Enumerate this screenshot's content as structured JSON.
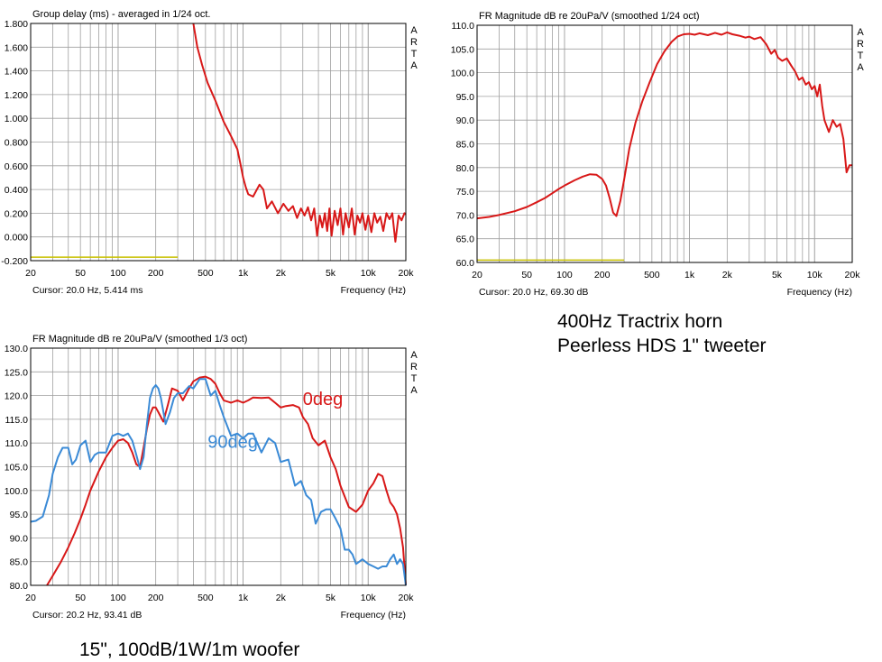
{
  "chart_data": [
    {
      "type": "line",
      "title": "Group delay (ms) - averaged in 1/24 oct.",
      "xlabel": "Frequency (Hz)",
      "ylabel": "",
      "watermark": "ARTA",
      "cursor_text": "Cursor: 20.0 Hz, 5.414 ms",
      "xscale": "log",
      "xlim": [
        20,
        20000
      ],
      "ylim": [
        -0.2,
        1.8
      ],
      "xticks": [
        20,
        50,
        100,
        200,
        500,
        1000,
        2000,
        5000,
        10000,
        20000
      ],
      "xtick_labels": [
        "20",
        "50",
        "100",
        "200",
        "500",
        "1k",
        "2k",
        "5k",
        "10k",
        "20k"
      ],
      "yticks": [
        -0.2,
        0.0,
        0.2,
        0.4,
        0.6,
        0.8,
        1.0,
        1.2,
        1.4,
        1.6,
        1.8
      ],
      "ytick_labels": [
        "-0.200",
        "0.000",
        "0.200",
        "0.400",
        "0.600",
        "0.800",
        "1.000",
        "1.200",
        "1.400",
        "1.600",
        "1.800"
      ],
      "grid": true,
      "series": [
        {
          "color": "#d81818",
          "x": [
            400,
            430,
            470,
            520,
            600,
            700,
            800,
            900,
            950,
            1000,
            1050,
            1100,
            1200,
            1350,
            1450,
            1550,
            1700,
            1900,
            2100,
            2300,
            2500,
            2700,
            2900,
            3100,
            3300,
            3500,
            3700,
            3900,
            4100,
            4300,
            4500,
            4700,
            4900,
            5100,
            5400,
            5700,
            6000,
            6300,
            6600,
            7000,
            7400,
            7800,
            8200,
            8600,
            9000,
            9500,
            10000,
            10600,
            11200,
            11800,
            12500,
            13200,
            14000,
            14800,
            15600,
            16500,
            17500,
            18500,
            19500,
            20000
          ],
          "y": [
            1.8,
            1.6,
            1.45,
            1.3,
            1.15,
            0.97,
            0.85,
            0.74,
            0.62,
            0.5,
            0.42,
            0.36,
            0.34,
            0.44,
            0.4,
            0.24,
            0.3,
            0.2,
            0.28,
            0.22,
            0.26,
            0.16,
            0.24,
            0.18,
            0.25,
            0.14,
            0.24,
            0.01,
            0.18,
            0.08,
            0.2,
            0.05,
            0.24,
            0.01,
            0.22,
            0.1,
            0.24,
            0.02,
            0.2,
            0.08,
            0.24,
            0.02,
            0.18,
            0.12,
            0.2,
            0.06,
            0.18,
            0.04,
            0.2,
            0.12,
            0.17,
            0.05,
            0.2,
            0.15,
            0.2,
            -0.04,
            0.18,
            0.14,
            0.2,
            0.19
          ]
        },
        {
          "color": "#c8c000",
          "x": [
            20,
            300
          ],
          "y": [
            -0.17,
            -0.17
          ]
        }
      ]
    },
    {
      "type": "line",
      "title": "FR Magnitude dB re 20uPa/V (smoothed 1/24 oct)",
      "xlabel": "Frequency (Hz)",
      "ylabel": "",
      "watermark": "ARTA",
      "cursor_text": "Cursor: 20.0 Hz, 69.30 dB",
      "xscale": "log",
      "xlim": [
        20,
        20000
      ],
      "ylim": [
        60,
        110
      ],
      "xticks": [
        20,
        50,
        100,
        200,
        500,
        1000,
        2000,
        5000,
        10000,
        20000
      ],
      "xtick_labels": [
        "20",
        "50",
        "100",
        "200",
        "500",
        "1k",
        "2k",
        "5k",
        "10k",
        "20k"
      ],
      "yticks": [
        60,
        65,
        70,
        75,
        80,
        85,
        90,
        95,
        100,
        105,
        110
      ],
      "ytick_labels": [
        "60.0",
        "65.0",
        "70.0",
        "75.0",
        "80.0",
        "85.0",
        "90.0",
        "95.0",
        "100.0",
        "105.0",
        "110.0"
      ],
      "grid": true,
      "series": [
        {
          "color": "#d81818",
          "x": [
            20,
            25,
            30,
            40,
            50,
            60,
            70,
            80,
            90,
            100,
            120,
            140,
            160,
            180,
            200,
            215,
            230,
            245,
            260,
            280,
            300,
            330,
            370,
            420,
            480,
            550,
            630,
            720,
            800,
            900,
            1000,
            1100,
            1200,
            1400,
            1600,
            1800,
            2000,
            2200,
            2500,
            2800,
            3000,
            3300,
            3700,
            4100,
            4500,
            4800,
            5100,
            5500,
            6000,
            6500,
            7000,
            7500,
            8000,
            8500,
            9000,
            9500,
            10000,
            10500,
            11000,
            11500,
            12000,
            13000,
            14000,
            15000,
            16000,
            17000,
            18000,
            19000,
            20000
          ],
          "y": [
            69.3,
            69.6,
            70.0,
            70.8,
            71.7,
            72.7,
            73.6,
            74.6,
            75.5,
            76.2,
            77.3,
            78.1,
            78.6,
            78.5,
            77.6,
            76.2,
            73.5,
            70.5,
            69.8,
            73.0,
            77.5,
            84.0,
            89.5,
            94.0,
            98.0,
            101.8,
            104.5,
            106.5,
            107.6,
            108.1,
            108.2,
            108.0,
            108.3,
            107.9,
            108.4,
            108.0,
            108.5,
            108.1,
            107.8,
            107.4,
            107.6,
            107.1,
            107.5,
            106.0,
            104.0,
            104.8,
            103.2,
            102.5,
            103.0,
            101.5,
            100.2,
            98.5,
            99.0,
            97.5,
            98.0,
            96.5,
            97.2,
            95.0,
            97.5,
            93.0,
            90.0,
            87.5,
            90.0,
            88.6,
            89.2,
            86.0,
            79.0,
            80.5,
            80.5
          ]
        },
        {
          "color": "#c8c000",
          "x": [
            20,
            300
          ],
          "y": [
            60.5,
            60.5
          ]
        }
      ]
    },
    {
      "type": "line",
      "title": "FR Magnitude dB re 20uPa/V (smoothed 1/3 oct)",
      "xlabel": "Frequency (Hz)",
      "ylabel": "",
      "watermark": "ARTA",
      "cursor_text": "Cursor: 20.2 Hz, 93.41 dB",
      "xscale": "log",
      "xlim": [
        20,
        20000
      ],
      "ylim": [
        80,
        130
      ],
      "xticks": [
        20,
        50,
        100,
        200,
        500,
        1000,
        2000,
        5000,
        10000,
        20000
      ],
      "xtick_labels": [
        "20",
        "50",
        "100",
        "200",
        "500",
        "1k",
        "2k",
        "5k",
        "10k",
        "20k"
      ],
      "yticks": [
        80,
        85,
        90,
        95,
        100,
        105,
        110,
        115,
        120,
        125,
        130
      ],
      "ytick_labels": [
        "80.0",
        "85.0",
        "90.0",
        "95.0",
        "100.0",
        "105.0",
        "110.0",
        "115.0",
        "120.0",
        "125.0",
        "130.0"
      ],
      "grid": true,
      "annotations": [
        {
          "text": "0deg",
          "color": "#d81818",
          "x": 3000,
          "y": 118
        },
        {
          "text": "90deg",
          "color": "#3a8ad6",
          "x": 520,
          "y": 109
        }
      ],
      "series": [
        {
          "name": "0deg",
          "color": "#d81818",
          "x": [
            27,
            30,
            35,
            40,
            45,
            50,
            55,
            60,
            70,
            80,
            90,
            100,
            110,
            120,
            130,
            140,
            150,
            160,
            170,
            180,
            190,
            200,
            210,
            230,
            250,
            270,
            300,
            330,
            370,
            400,
            450,
            500,
            550,
            600,
            650,
            700,
            800,
            900,
            1000,
            1100,
            1200,
            1400,
            1600,
            1800,
            2000,
            2200,
            2500,
            2800,
            3000,
            3300,
            3600,
            4000,
            4500,
            5000,
            5500,
            6000,
            7000,
            8000,
            9000,
            10000,
            11000,
            12000,
            13000,
            14000,
            15000,
            16000,
            17000,
            18000,
            19000,
            20000
          ],
          "y": [
            80,
            82,
            85,
            88,
            91,
            94,
            97,
            100,
            104,
            107,
            109,
            110.5,
            110.8,
            110,
            108,
            105.5,
            105,
            109,
            113,
            116,
            117.5,
            117.5,
            116.5,
            114.5,
            118,
            121.5,
            121,
            119,
            121.5,
            123,
            123.8,
            124,
            123.5,
            122.5,
            120.5,
            119,
            118.5,
            119,
            118.5,
            119,
            119.6,
            119.5,
            119.6,
            118.5,
            117.5,
            117.8,
            118,
            117.5,
            115.5,
            114,
            111,
            109.5,
            110.5,
            107,
            104.5,
            101,
            96.5,
            95.5,
            97,
            100,
            101.5,
            103.5,
            103,
            100,
            97.5,
            96.5,
            95,
            92,
            88,
            80
          ]
        },
        {
          "name": "90deg",
          "color": "#3a8ad6",
          "x": [
            20,
            22,
            25,
            28,
            30,
            33,
            36,
            40,
            43,
            46,
            50,
            55,
            60,
            65,
            70,
            80,
            90,
            100,
            110,
            120,
            130,
            140,
            150,
            160,
            170,
            180,
            190,
            200,
            210,
            220,
            240,
            260,
            280,
            300,
            330,
            370,
            400,
            450,
            500,
            550,
            600,
            650,
            700,
            800,
            900,
            1000,
            1100,
            1200,
            1400,
            1600,
            1800,
            2000,
            2300,
            2600,
            2900,
            3200,
            3500,
            3800,
            4200,
            4600,
            5000,
            5500,
            6000,
            6500,
            7000,
            7500,
            8000,
            8500,
            9000,
            10000,
            11000,
            12000,
            13000,
            14000,
            15000,
            16000,
            17000,
            18000,
            19000,
            20000
          ],
          "y": [
            93.4,
            93.6,
            94.5,
            99,
            103.5,
            107,
            109,
            109,
            105.5,
            106.5,
            109.5,
            110.5,
            106,
            107.5,
            108,
            108,
            111.5,
            112,
            111.5,
            112,
            110.5,
            107.5,
            104.5,
            107,
            114,
            119.5,
            121.5,
            122.2,
            121.5,
            119.5,
            114,
            116.5,
            119.5,
            120.5,
            120.5,
            122,
            121.5,
            123.5,
            123.5,
            120,
            121,
            118,
            115.5,
            111.5,
            112,
            111,
            112,
            112,
            108,
            111,
            110,
            106,
            106.5,
            101,
            102,
            99,
            98,
            93,
            95.5,
            96,
            96,
            94,
            92,
            87.5,
            87.5,
            86.5,
            84.5,
            85,
            85.5,
            84.5,
            84,
            83.5,
            84,
            84,
            85.5,
            86.5,
            84.5,
            85.5,
            84.5,
            80
          ]
        }
      ]
    }
  ],
  "captions": {
    "horn_line1": "400Hz Tractrix horn",
    "horn_line2": "Peerless HDS 1\" tweeter",
    "woofer": "15\", 100dB/1W/1m woofer"
  },
  "colors": {
    "grid": "#a0a0a0",
    "frame": "#000000"
  }
}
